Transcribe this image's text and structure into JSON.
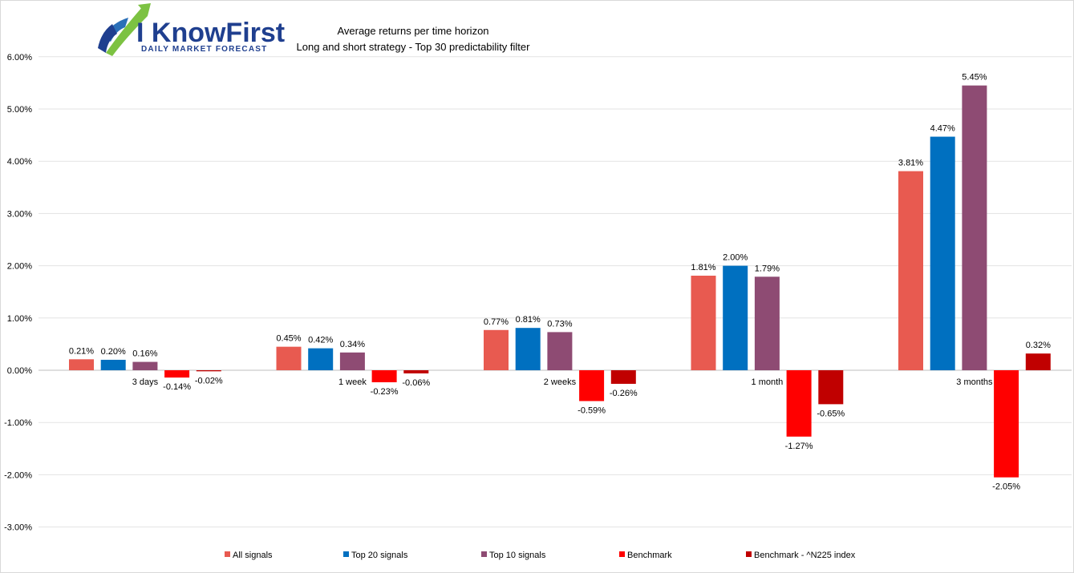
{
  "logo": {
    "main_text": "I KnowFirst",
    "sub_text": "DAILY MARKET FORECAST"
  },
  "chart_data": {
    "type": "bar",
    "title": "Average returns per time horizon",
    "subtitle": "Long and short strategy - Top 30 predictability filter",
    "categories": [
      "3 days",
      "1 week",
      "2 weeks",
      "1 month",
      "3 months"
    ],
    "y_ticks": [
      "6.00%",
      "5.00%",
      "4.00%",
      "3.00%",
      "2.00%",
      "1.00%",
      "0.00%",
      "-1.00%",
      "-2.00%",
      "-3.00%"
    ],
    "ylim": [
      -3,
      6
    ],
    "grid": true,
    "legend_position": "bottom",
    "series": [
      {
        "name": "All signals",
        "color": "#e85a50",
        "values": [
          0.21,
          0.45,
          0.77,
          1.81,
          3.81
        ],
        "labels": [
          "0.21%",
          "0.45%",
          "0.77%",
          "1.81%",
          "3.81%"
        ]
      },
      {
        "name": "Top 20 signals",
        "color": "#0070c0",
        "values": [
          0.2,
          0.42,
          0.81,
          2.0,
          4.47
        ],
        "labels": [
          "0.20%",
          "0.42%",
          "0.81%",
          "2.00%",
          "4.47%"
        ]
      },
      {
        "name": "Top 10 signals",
        "color": "#8e4b73",
        "values": [
          0.16,
          0.34,
          0.73,
          1.79,
          5.45
        ],
        "labels": [
          "0.16%",
          "0.34%",
          "0.73%",
          "1.79%",
          "5.45%"
        ]
      },
      {
        "name": "Benchmark",
        "color": "#ff0000",
        "values": [
          -0.14,
          -0.23,
          -0.59,
          -1.27,
          -2.05
        ],
        "labels": [
          "-0.14%",
          "-0.23%",
          "-0.59%",
          "-1.27%",
          "-2.05%"
        ]
      },
      {
        "name": "Benchmark - ^N225 index",
        "color": "#c00000",
        "values": [
          -0.02,
          -0.06,
          -0.26,
          -0.65,
          0.32
        ],
        "labels": [
          "-0.02%",
          "-0.06%",
          "-0.26%",
          "-0.65%",
          "0.32%"
        ]
      }
    ]
  }
}
